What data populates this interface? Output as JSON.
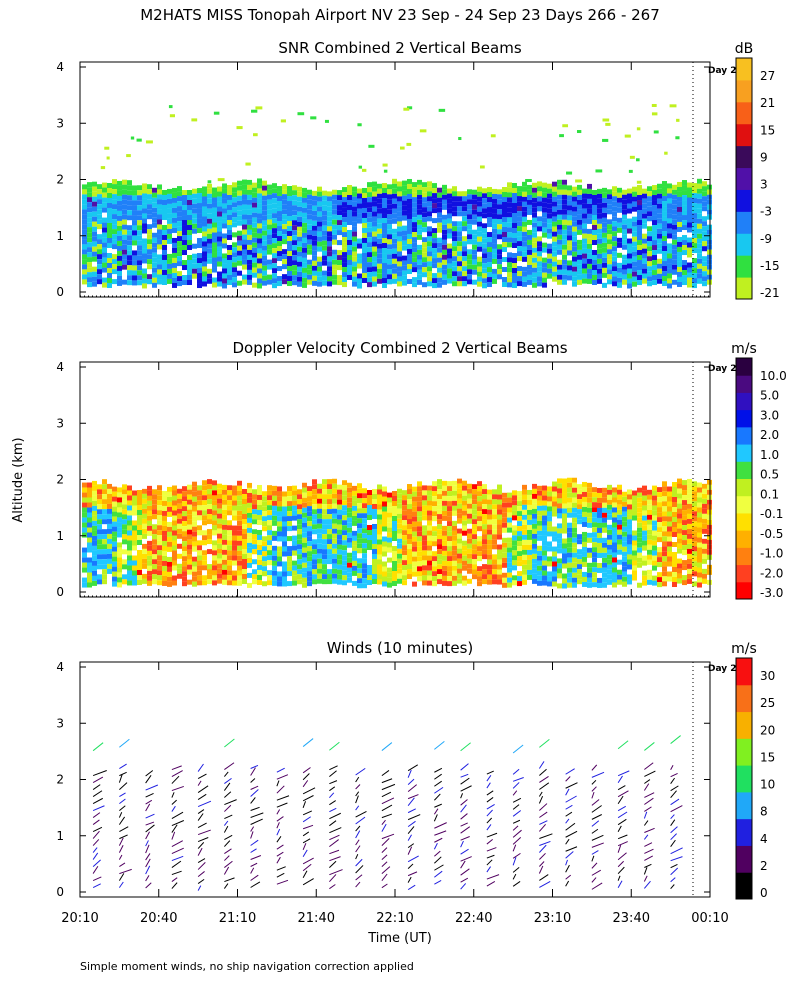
{
  "figure": {
    "title": "M2HATS MISS Tonopah Airport NV  23 Sep - 24 Sep 23 Days 266 - 267",
    "ylabel": "Altitude (km)",
    "xlabel": "Time (UT)",
    "footer": "Simple moment winds, no ship navigation correction applied",
    "day_marker": "Day 2"
  },
  "colors": {
    "snr": [
      "#c0f020",
      "#30e040",
      "#18c8f0",
      "#2080f8",
      "#1010e0",
      "#5010a8",
      "#3a0a5a",
      "#e01010",
      "#f86018",
      "#f8a020",
      "#f8c020"
    ],
    "doppler": [
      "#ff0000",
      "#ff4020",
      "#ff8010",
      "#ffb000",
      "#ffe000",
      "#f0ff40",
      "#c0f020",
      "#40e040",
      "#20c8ff",
      "#1878ff",
      "#0010e8",
      "#3010c0",
      "#4a0a80",
      "#2a0040"
    ],
    "winds": [
      "#000000",
      "#500060",
      "#2020e0",
      "#20a8f8",
      "#20e060",
      "#80f020",
      "#f8b000",
      "#f87018",
      "#f81010"
    ]
  },
  "chart_data": [
    {
      "type": "heatmap",
      "title": "SNR Combined 2 Vertical Beams",
      "unit": "dB",
      "x_ticks": [
        "20:10",
        "20:40",
        "21:10",
        "21:40",
        "22:10",
        "22:40",
        "23:10",
        "23:40",
        "00:10"
      ],
      "y_ticks": [
        "0",
        "1",
        "2",
        "3",
        "4"
      ],
      "ylim": [
        0,
        4
      ],
      "colorbar_labels": [
        "27",
        "21",
        "15",
        "9",
        "3",
        "-3",
        "-9",
        "-15",
        "-21"
      ],
      "data_top_km": 1.9,
      "strong_band_km": [
        1.3,
        1.9
      ]
    },
    {
      "type": "heatmap",
      "title": "Doppler Velocity Combined 2 Vertical Beams",
      "unit": "m/s",
      "x_ticks": [
        "20:10",
        "20:40",
        "21:10",
        "21:40",
        "22:10",
        "22:40",
        "23:10",
        "23:40",
        "00:10"
      ],
      "y_ticks": [
        "0",
        "1",
        "2",
        "3",
        "4"
      ],
      "ylim": [
        0,
        4
      ],
      "colorbar_labels": [
        "10.0",
        "5.0",
        "3.0",
        "2.0",
        "1.0",
        "0.5",
        "0.1",
        "-0.1",
        "-0.5",
        "-1.0",
        "-2.0",
        "-3.0"
      ],
      "data_top_km": 1.9
    },
    {
      "type": "scatter",
      "title": "Winds (10 minutes)",
      "unit": "m/s",
      "x_ticks": [
        "20:10",
        "20:40",
        "21:10",
        "21:40",
        "22:10",
        "22:40",
        "23:10",
        "23:40",
        "00:10"
      ],
      "y_ticks": [
        "0",
        "1",
        "2",
        "3",
        "4"
      ],
      "ylim": [
        0,
        4
      ],
      "colorbar_labels": [
        "30",
        "25",
        "20",
        "15",
        "10",
        "8",
        "4",
        "2",
        "0"
      ],
      "profile_times_min_after_2010": [
        5,
        15,
        25,
        35,
        45,
        55,
        65,
        75,
        85,
        95,
        105,
        115,
        125,
        135,
        145,
        155,
        165,
        175,
        185,
        195,
        205,
        215,
        225
      ],
      "profile_top_km": 2.2
    }
  ]
}
